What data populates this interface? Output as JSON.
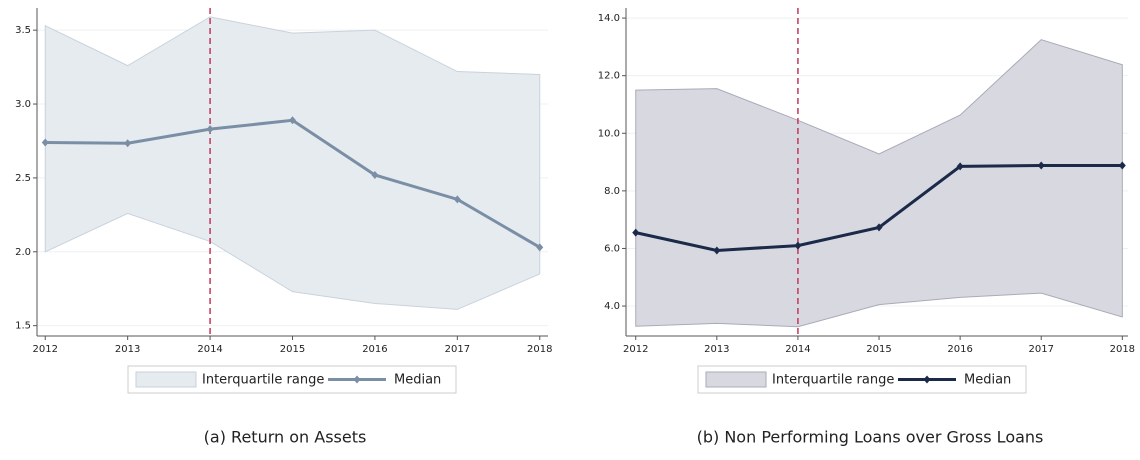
{
  "chart_data": [
    {
      "type": "line",
      "caption": "(a) Return on Assets",
      "x": [
        2012,
        2013,
        2014,
        2015,
        2016,
        2017,
        2018
      ],
      "xlim": [
        2011.9,
        2018.1
      ],
      "xticks": [
        2012,
        2013,
        2014,
        2015,
        2016,
        2017,
        2018
      ],
      "ylim": [
        1.43,
        3.65
      ],
      "yticks": [
        1.5,
        {
          "value": 2,
          "label": "2.0"
        },
        2.5,
        {
          "value": 3,
          "label": "3.0"
        },
        3.5
      ],
      "vline": 2014,
      "vline_color": "#c0395a",
      "grid": true,
      "series": [
        {
          "name": "Interquartile range",
          "color": "#e6ebf0",
          "stroke": "#c9d2dc",
          "low": [
            2.0,
            2.26,
            2.07,
            1.73,
            1.65,
            1.61,
            1.85
          ],
          "high": [
            3.53,
            3.26,
            3.59,
            3.48,
            3.5,
            3.22,
            3.2
          ]
        },
        {
          "name": "Median",
          "color": "#7a8fa6",
          "values": [
            2.74,
            2.735,
            2.83,
            2.89,
            2.52,
            2.355,
            2.03
          ]
        }
      ]
    },
    {
      "type": "line",
      "caption": "(b) Non Performing Loans over Gross Loans",
      "x": [
        2012,
        2013,
        2014,
        2015,
        2016,
        2017,
        2018
      ],
      "xlim": [
        2011.88,
        2018.07
      ],
      "xticks": [
        2012,
        2013,
        2014,
        2015,
        2016,
        2017,
        2018
      ],
      "ylim": [
        2.96,
        14.35
      ],
      "yticks": [
        {
          "value": 4,
          "label": "4.0"
        },
        {
          "value": 6,
          "label": "6.0"
        },
        {
          "value": 8,
          "label": "8.0"
        },
        {
          "value": 10,
          "label": "10.0"
        },
        {
          "value": 12,
          "label": "12.0"
        },
        {
          "value": 14,
          "label": "14.0"
        }
      ],
      "vline": 2014,
      "vline_color": "#c0395a",
      "grid": true,
      "series": [
        {
          "name": "Interquartile range",
          "color": "#d8d9e0",
          "stroke": "#a8aab8",
          "low": [
            3.3,
            3.4,
            3.28,
            4.05,
            4.3,
            4.45,
            3.62
          ],
          "high": [
            11.5,
            11.55,
            10.45,
            9.28,
            10.63,
            13.25,
            12.38
          ]
        },
        {
          "name": "Median",
          "color": "#1c2a4a",
          "values": [
            6.55,
            5.93,
            6.1,
            6.73,
            8.85,
            8.88,
            8.88
          ]
        }
      ]
    }
  ]
}
